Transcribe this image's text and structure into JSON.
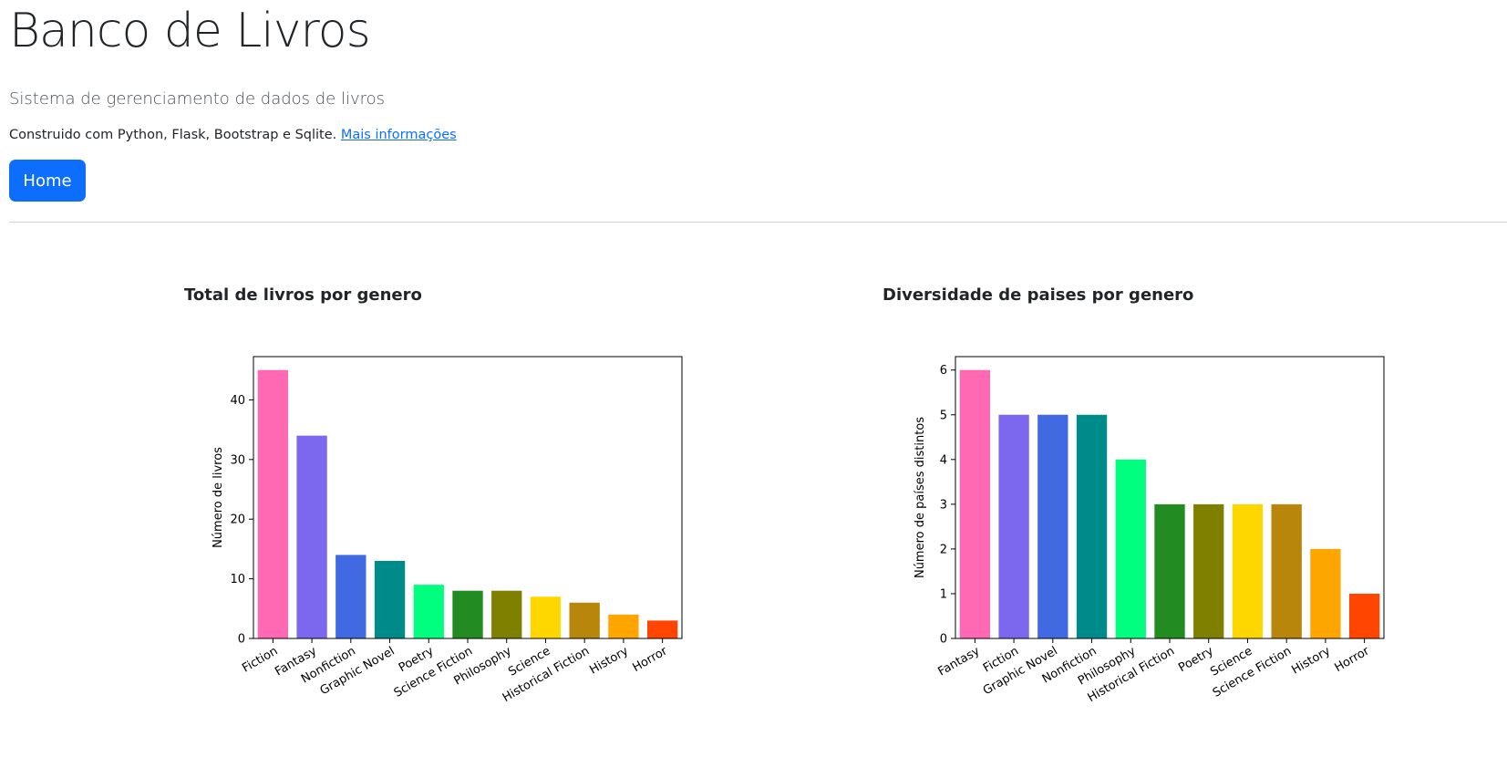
{
  "header": {
    "title": "Banco de Livros",
    "subtitle": "Sistema de gerenciamento de dados de livros",
    "built_with": "Construido com Python, Flask, Bootstrap e Sqlite.",
    "more_info_link": "Mais informações",
    "home_button": "Home"
  },
  "colors": {
    "primary": "#0d6efd"
  },
  "chart_data": [
    {
      "type": "bar",
      "title": "Total de livros por genero",
      "xlabel": "",
      "ylabel": "Número de livros",
      "categories": [
        "Fiction",
        "Fantasy",
        "Nonfiction",
        "Graphic Novel",
        "Poetry",
        "Science Fiction",
        "Philosophy",
        "Science",
        "Historical Fiction",
        "History",
        "Horror"
      ],
      "values": [
        45,
        34,
        14,
        13,
        9,
        8,
        8,
        7,
        6,
        4,
        3
      ],
      "colors": [
        "#ff69b4",
        "#7b68ee",
        "#4169e1",
        "#008b8b",
        "#00ff7f",
        "#228b22",
        "#808000",
        "#ffd700",
        "#b8860b",
        "#ffa500",
        "#ff4500"
      ],
      "ylim": [
        0,
        47.25
      ],
      "yticks": [
        0,
        10,
        20,
        30,
        40
      ],
      "grid": false
    },
    {
      "type": "bar",
      "title": "Diversidade de paises por genero",
      "xlabel": "",
      "ylabel": "Número de países distintos",
      "categories": [
        "Fantasy",
        "Fiction",
        "Graphic Novel",
        "Nonfiction",
        "Philosophy",
        "Historical Fiction",
        "Poetry",
        "Science",
        "Science Fiction",
        "History",
        "Horror"
      ],
      "values": [
        6,
        5,
        5,
        5,
        4,
        3,
        3,
        3,
        3,
        2,
        1
      ],
      "colors": [
        "#ff69b4",
        "#7b68ee",
        "#4169e1",
        "#008b8b",
        "#00ff7f",
        "#228b22",
        "#808000",
        "#ffd700",
        "#b8860b",
        "#ffa500",
        "#ff4500"
      ],
      "ylim": [
        0,
        6.3
      ],
      "yticks": [
        0,
        1,
        2,
        3,
        4,
        5,
        6
      ],
      "grid": false
    }
  ]
}
